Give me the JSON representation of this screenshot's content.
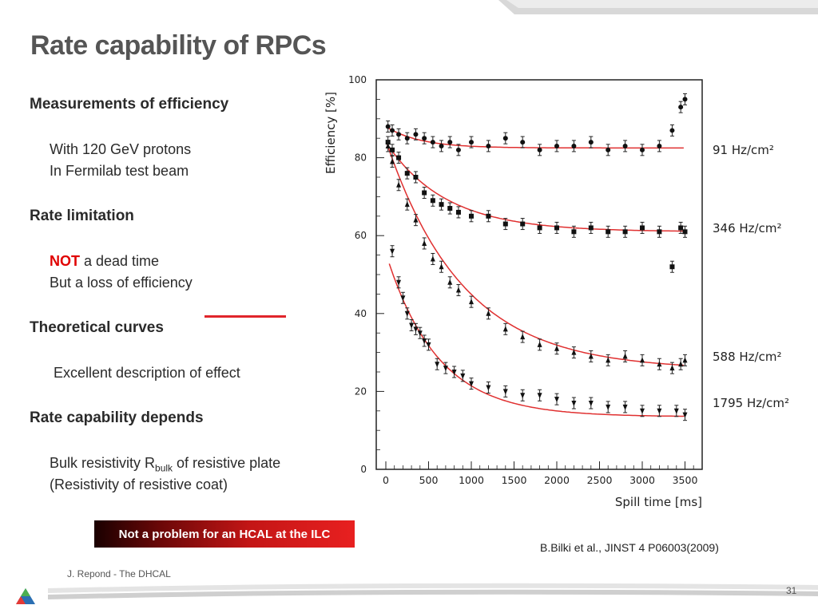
{
  "slide": {
    "title": "Rate capability of RPCs",
    "sections": [
      {
        "heading": "Measurements of efficiency",
        "lines": [
          "With 120 GeV protons",
          "In Fermilab test beam"
        ]
      },
      {
        "heading": "Rate limitation",
        "lines_rich": {
          "not_word": "NOT",
          "rest": " a dead time",
          "line2": "But a loss of efficiency"
        }
      },
      {
        "heading": "Theoretical curves",
        "lines": [
          "Excellent description of effect"
        ]
      },
      {
        "heading": "Rate capability depends",
        "bulk": {
          "pre": "Bulk resistivity R",
          "sub": "bulk",
          "post": " of resistive plate"
        },
        "line2": "(Resistivity of resistive coat)"
      }
    ],
    "banner": "Not a problem for an HCAL at the ILC",
    "citation": "B.Bilki et al., JINST  4  P06003(2009)",
    "footer": "J. Repond - The DHCAL",
    "page_number": "31",
    "colors": {
      "title": "#555555",
      "accent_red": "#e0252b",
      "fit_curve": "#e03030"
    }
  },
  "chart_data": {
    "type": "scatter",
    "title": "",
    "xlabel": "Spill time [ms]",
    "ylabel": "Efficiency [%]",
    "xlim": [
      0,
      3600
    ],
    "ylim": [
      0,
      100
    ],
    "xticks": [
      0,
      500,
      1000,
      1500,
      2000,
      2500,
      3000,
      3500
    ],
    "yticks": [
      0,
      20,
      40,
      60,
      80,
      100
    ],
    "grid": false,
    "series": [
      {
        "name": "91 Hz/cm²",
        "marker": "circle",
        "fit": {
          "a": 82.5,
          "b": 5.5,
          "tau": 400
        },
        "x": [
          25,
          75,
          150,
          250,
          350,
          450,
          550,
          650,
          750,
          850,
          1000,
          1200,
          1400,
          1600,
          1800,
          2000,
          2200,
          2400,
          2600,
          2800,
          3000,
          3200,
          3350,
          3450,
          3500
        ],
        "y": [
          88,
          87,
          86,
          85,
          86,
          85,
          84,
          83,
          84,
          82,
          84,
          83,
          85,
          84,
          82,
          83,
          83,
          84,
          82,
          83,
          82,
          83,
          87,
          93,
          95
        ]
      },
      {
        "name": "346 Hz/cm²",
        "marker": "square",
        "fit": {
          "a": 61,
          "b": 23,
          "tau": 700
        },
        "x": [
          25,
          75,
          150,
          250,
          350,
          450,
          550,
          650,
          750,
          850,
          1000,
          1200,
          1400,
          1600,
          1800,
          2000,
          2200,
          2400,
          2600,
          2800,
          3000,
          3200,
          3350,
          3450,
          3500
        ],
        "y": [
          84,
          82,
          80,
          76,
          75,
          71,
          69,
          68,
          67,
          66,
          65,
          65,
          63,
          63,
          62,
          62,
          61,
          62,
          61,
          61,
          62,
          61,
          52,
          62,
          61
        ]
      },
      {
        "name": "588 Hz/cm²",
        "marker": "triangle-up",
        "fit": {
          "a": 25.5,
          "b": 59,
          "tau": 900
        },
        "x": [
          25,
          75,
          150,
          250,
          350,
          450,
          550,
          650,
          750,
          850,
          1000,
          1200,
          1400,
          1600,
          1800,
          2000,
          2200,
          2400,
          2600,
          2800,
          3000,
          3200,
          3350,
          3450,
          3500
        ],
        "y": [
          83,
          79,
          73,
          68,
          64,
          58,
          54,
          52,
          48,
          46,
          43,
          40,
          36,
          34,
          32,
          31,
          30,
          29,
          28,
          29,
          28,
          27,
          26,
          27,
          28
        ]
      },
      {
        "name": "1795 Hz/cm²",
        "marker": "triangle-down",
        "fit": {
          "a": 13.5,
          "b": 42,
          "tau": 600
        },
        "x": [
          75,
          150,
          200,
          250,
          300,
          350,
          400,
          450,
          500,
          600,
          700,
          800,
          900,
          1000,
          1200,
          1400,
          1600,
          1800,
          2000,
          2200,
          2400,
          2600,
          2800,
          3000,
          3200,
          3400,
          3500
        ],
        "y": [
          56,
          48,
          44,
          40,
          37,
          36,
          35,
          33,
          32,
          27,
          26,
          25,
          24,
          22,
          21,
          20,
          19,
          19,
          18,
          17,
          17,
          16,
          16,
          15,
          15,
          15,
          14
        ]
      }
    ]
  }
}
